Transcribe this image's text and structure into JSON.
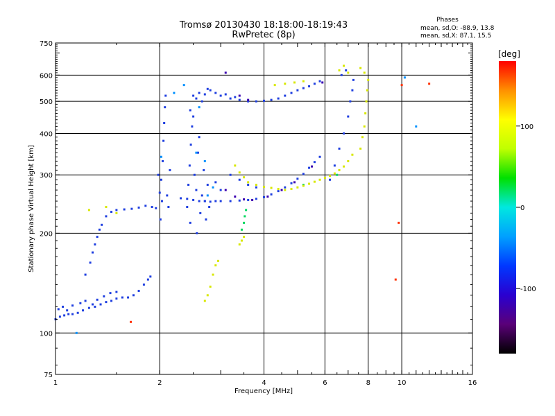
{
  "chart_data": {
    "type": "scatter",
    "title": "Tromsø 20130430 18:18:00-18:19:43",
    "subtitle": "RwPretec (8p)",
    "xlabel": "Frequency [MHz]",
    "ylabel": "Stationary phase Virtual Height [km]",
    "x_scale": "log",
    "y_scale": "log",
    "xlim": [
      1,
      16
    ],
    "ylim": [
      75,
      750
    ],
    "x_ticks": [
      1,
      2,
      4,
      6,
      8,
      10,
      16
    ],
    "y_ticks": [
      75,
      100,
      200,
      300,
      400,
      500,
      600,
      750
    ],
    "grid": true,
    "stats": {
      "heading": "Phases",
      "line_o": "mean, sd,O: -88.9, 13.8",
      "line_x": "mean, sd,X:  87.1, 15.5"
    },
    "colorbar": {
      "label": "[deg]",
      "min": -180,
      "max": 180,
      "ticks": [
        100,
        0,
        -100
      ],
      "colors": [
        "#000000",
        "#5a0078",
        "#2a00d0",
        "#0038ff",
        "#00a0ff",
        "#00e8e0",
        "#00e000",
        "#c0ff00",
        "#ffff00",
        "#ff9000",
        "#ff0000"
      ]
    },
    "series": [
      {
        "phase": -100,
        "color": "#1f3fe0",
        "points": [
          [
            1.0,
            110
          ],
          [
            1.03,
            112
          ],
          [
            1.06,
            113
          ],
          [
            1.09,
            114
          ],
          [
            1.12,
            114
          ],
          [
            1.16,
            115
          ],
          [
            1.2,
            117
          ],
          [
            1.25,
            119
          ],
          [
            1.3,
            120
          ],
          [
            1.35,
            122
          ],
          [
            1.4,
            124
          ],
          [
            1.45,
            125
          ],
          [
            1.5,
            127
          ],
          [
            1.56,
            128
          ],
          [
            1.62,
            128
          ],
          [
            1.68,
            130
          ],
          [
            1.74,
            134
          ],
          [
            1.8,
            140
          ],
          [
            1.85,
            145
          ],
          [
            1.88,
            148
          ],
          [
            1.02,
            118
          ],
          [
            1.05,
            120
          ],
          [
            1.08,
            117
          ],
          [
            1.12,
            121
          ],
          [
            1.18,
            123
          ],
          [
            1.22,
            125
          ],
          [
            1.28,
            122
          ],
          [
            1.32,
            126
          ],
          [
            1.38,
            129
          ],
          [
            1.44,
            132
          ],
          [
            1.5,
            133
          ],
          [
            1.22,
            150
          ],
          [
            1.26,
            163
          ],
          [
            1.28,
            175
          ],
          [
            1.3,
            185
          ],
          [
            1.32,
            195
          ],
          [
            1.34,
            205
          ],
          [
            1.36,
            212
          ],
          [
            1.4,
            225
          ],
          [
            1.45,
            232
          ],
          [
            1.5,
            235
          ],
          [
            1.58,
            236
          ],
          [
            1.66,
            237
          ],
          [
            1.74,
            239
          ],
          [
            1.82,
            242
          ],
          [
            1.9,
            240
          ],
          [
            1.95,
            238
          ],
          [
            2.0,
            265
          ],
          [
            2.02,
            290
          ],
          [
            2.04,
            330
          ],
          [
            2.05,
            380
          ],
          [
            2.06,
            430
          ],
          [
            2.07,
            480
          ],
          [
            2.08,
            520
          ],
          [
            1.98,
            300
          ],
          [
            2.03,
            250
          ],
          [
            2.1,
            260
          ],
          [
            2.12,
            240
          ],
          [
            2.14,
            310
          ],
          [
            2.01,
            220
          ],
          [
            2.4,
            240
          ],
          [
            2.42,
            280
          ],
          [
            2.44,
            320
          ],
          [
            2.46,
            370
          ],
          [
            2.48,
            420
          ],
          [
            2.5,
            450
          ],
          [
            2.52,
            300
          ],
          [
            2.55,
            270
          ],
          [
            2.58,
            350
          ],
          [
            2.6,
            390
          ],
          [
            2.62,
            230
          ],
          [
            2.65,
            260
          ],
          [
            2.68,
            310
          ],
          [
            2.7,
            250
          ],
          [
            2.72,
            220
          ],
          [
            2.75,
            280
          ],
          [
            2.78,
            240
          ],
          [
            2.45,
            215
          ],
          [
            2.56,
            200
          ],
          [
            2.3,
            255
          ],
          [
            2.4,
            254
          ],
          [
            2.5,
            252
          ],
          [
            2.6,
            250
          ],
          [
            2.7,
            250
          ],
          [
            2.8,
            249
          ],
          [
            2.9,
            250
          ],
          [
            3.0,
            250
          ],
          [
            3.2,
            250
          ],
          [
            3.4,
            251
          ],
          [
            3.6,
            252
          ],
          [
            3.8,
            254
          ],
          [
            4.0,
            257
          ],
          [
            4.2,
            262
          ],
          [
            4.4,
            268
          ],
          [
            4.6,
            275
          ],
          [
            4.8,
            283
          ],
          [
            5.0,
            292
          ],
          [
            5.2,
            302
          ],
          [
            5.4,
            315
          ],
          [
            5.6,
            328
          ],
          [
            5.8,
            340
          ],
          [
            2.45,
            470
          ],
          [
            2.5,
            520
          ],
          [
            2.55,
            510
          ],
          [
            2.6,
            530
          ],
          [
            2.65,
            500
          ],
          [
            2.7,
            525
          ],
          [
            2.75,
            545
          ],
          [
            2.8,
            540
          ],
          [
            2.9,
            530
          ],
          [
            3.0,
            520
          ],
          [
            3.1,
            525
          ],
          [
            3.2,
            510
          ],
          [
            3.3,
            515
          ],
          [
            3.4,
            505
          ],
          [
            3.6,
            500
          ],
          [
            3.8,
            500
          ],
          [
            4.0,
            502
          ],
          [
            4.2,
            505
          ],
          [
            4.4,
            510
          ],
          [
            4.6,
            520
          ],
          [
            4.8,
            530
          ],
          [
            5.0,
            540
          ],
          [
            5.2,
            548
          ],
          [
            5.4,
            555
          ],
          [
            5.6,
            565
          ],
          [
            5.8,
            575
          ],
          [
            3.2,
            300
          ],
          [
            3.4,
            290
          ],
          [
            3.6,
            280
          ],
          [
            3.8,
            275
          ],
          [
            2.9,
            285
          ],
          [
            3.0,
            270
          ],
          [
            6.2,
            290
          ],
          [
            6.4,
            320
          ],
          [
            6.6,
            360
          ],
          [
            6.8,
            400
          ],
          [
            7.0,
            450
          ],
          [
            7.1,
            500
          ],
          [
            7.2,
            540
          ],
          [
            7.25,
            580
          ],
          [
            6.9,
            620
          ],
          [
            6.7,
            600
          ]
        ]
      },
      {
        "phase": -130,
        "color": "#3a00b0",
        "points": [
          [
            3.1,
            270
          ],
          [
            3.3,
            258
          ],
          [
            3.5,
            253
          ],
          [
            3.7,
            252
          ],
          [
            4.1,
            258
          ],
          [
            4.5,
            270
          ],
          [
            4.9,
            285
          ],
          [
            5.5,
            318
          ],
          [
            3.4,
            520
          ],
          [
            3.6,
            505
          ],
          [
            5.9,
            570
          ],
          [
            3.1,
            610
          ]
        ]
      },
      {
        "phase": -60,
        "color": "#0090ff",
        "points": [
          [
            2.2,
            530
          ],
          [
            2.35,
            560
          ],
          [
            2.6,
            480
          ],
          [
            2.7,
            330
          ],
          [
            2.85,
            275
          ],
          [
            1.15,
            100
          ],
          [
            10.2,
            590
          ],
          [
            2.02,
            340
          ],
          [
            2.55,
            350
          ],
          [
            2.75,
            260
          ],
          [
            11.0,
            420
          ]
        ]
      },
      {
        "phase": 20,
        "color": "#00d860",
        "points": [
          [
            3.45,
            205
          ],
          [
            3.5,
            215
          ],
          [
            3.52,
            225
          ],
          [
            5.2,
            280
          ],
          [
            6.5,
            300
          ],
          [
            3.55,
            235
          ]
        ]
      },
      {
        "phase": 95,
        "color": "#d8e800",
        "points": [
          [
            2.7,
            125
          ],
          [
            2.75,
            130
          ],
          [
            2.8,
            138
          ],
          [
            2.85,
            150
          ],
          [
            2.9,
            160
          ],
          [
            2.95,
            165
          ],
          [
            3.4,
            185
          ],
          [
            3.45,
            190
          ],
          [
            3.5,
            195
          ],
          [
            3.3,
            320
          ],
          [
            3.4,
            305
          ],
          [
            3.5,
            295
          ],
          [
            3.6,
            285
          ],
          [
            3.8,
            280
          ],
          [
            4.0,
            276
          ],
          [
            4.2,
            274
          ],
          [
            4.4,
            272
          ],
          [
            4.6,
            270
          ],
          [
            4.8,
            272
          ],
          [
            5.0,
            275
          ],
          [
            5.2,
            278
          ],
          [
            5.4,
            282
          ],
          [
            5.6,
            286
          ],
          [
            5.8,
            290
          ],
          [
            6.0,
            294
          ],
          [
            6.2,
            298
          ],
          [
            6.4,
            303
          ],
          [
            6.6,
            310
          ],
          [
            6.8,
            318
          ],
          [
            7.0,
            330
          ],
          [
            7.2,
            345
          ],
          [
            7.6,
            360
          ],
          [
            7.7,
            390
          ],
          [
            7.8,
            420
          ],
          [
            7.85,
            460
          ],
          [
            7.9,
            500
          ],
          [
            7.95,
            540
          ],
          [
            8.0,
            580
          ],
          [
            7.8,
            610
          ],
          [
            7.6,
            630
          ],
          [
            6.6,
            620
          ],
          [
            6.8,
            640
          ],
          [
            7.0,
            610
          ],
          [
            4.3,
            560
          ],
          [
            4.6,
            565
          ],
          [
            4.9,
            570
          ],
          [
            5.2,
            575
          ],
          [
            1.5,
            230
          ],
          [
            1.4,
            240
          ],
          [
            1.25,
            235
          ]
        ]
      },
      {
        "phase": 150,
        "color": "#ff3000",
        "points": [
          [
            10.0,
            560
          ],
          [
            9.8,
            215
          ],
          [
            12.0,
            565
          ],
          [
            9.6,
            145
          ],
          [
            1.65,
            108
          ]
        ]
      }
    ]
  }
}
